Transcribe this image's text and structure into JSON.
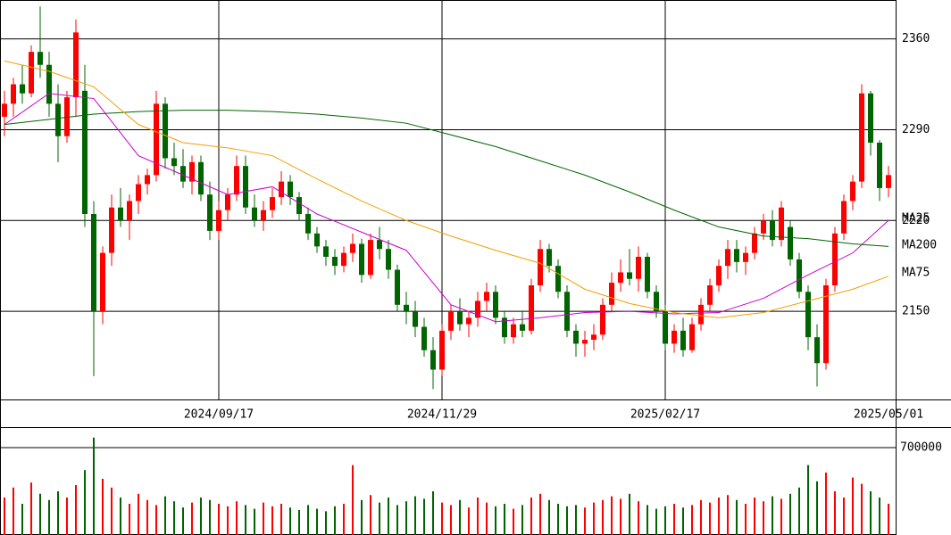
{
  "chart_data": [
    {
      "type": "candlestick",
      "categories": [
        null,
        null,
        null,
        null,
        null,
        null,
        null,
        null,
        null,
        null,
        null,
        null,
        null,
        null,
        null,
        null,
        null,
        null,
        null,
        null,
        null,
        null,
        null,
        null,
        "2024/09/17",
        null,
        null,
        null,
        null,
        null,
        null,
        null,
        null,
        null,
        null,
        null,
        null,
        null,
        null,
        null,
        null,
        null,
        null,
        null,
        null,
        null,
        null,
        null,
        null,
        "2024/11/29",
        null,
        null,
        null,
        null,
        null,
        null,
        null,
        null,
        null,
        null,
        null,
        null,
        null,
        null,
        null,
        null,
        null,
        null,
        null,
        null,
        null,
        null,
        null,
        null,
        "2025/02/17",
        null,
        null,
        null,
        null,
        null,
        null,
        null,
        null,
        null,
        null,
        null,
        null,
        null,
        null,
        null,
        null,
        null,
        null,
        null,
        null,
        null,
        null,
        null,
        null,
        "2025/05/01"
      ],
      "open": [
        2300,
        2310,
        2325,
        2318,
        2350,
        2340,
        2310,
        2285,
        2315,
        2320,
        2225,
        2150,
        2195,
        2230,
        2220,
        2235,
        2248,
        2255,
        2310,
        2268,
        2262,
        2250,
        2265,
        2240,
        2212,
        2228,
        2240,
        2262,
        2230,
        2220,
        2228,
        2238,
        2250,
        2238,
        2225,
        2210,
        2200,
        2192,
        2185,
        2195,
        2202,
        2178,
        2205,
        2198,
        2182,
        2155,
        2150,
        2138,
        2120,
        2105,
        2135,
        2150,
        2140,
        2145,
        2158,
        2165,
        2145,
        2130,
        2140,
        2135,
        2170,
        2198,
        2185,
        2165,
        2135,
        2125,
        2128,
        2132,
        2155,
        2172,
        2180,
        2175,
        2192,
        2165,
        2150,
        2125,
        2135,
        2120,
        2140,
        2155,
        2170,
        2185,
        2198,
        2188,
        2195,
        2210,
        2220,
        2205,
        2215,
        2190,
        2165,
        2130,
        2110,
        2170,
        2210,
        2235,
        2250,
        2318,
        2280,
        2245
      ],
      "high": [
        2320,
        2330,
        2340,
        2355,
        2385,
        2350,
        2325,
        2320,
        2375,
        2340,
        2235,
        2200,
        2240,
        2245,
        2240,
        2255,
        2260,
        2320,
        2315,
        2280,
        2275,
        2270,
        2270,
        2250,
        2235,
        2245,
        2270,
        2270,
        2240,
        2235,
        2245,
        2258,
        2255,
        2242,
        2230,
        2215,
        2205,
        2198,
        2200,
        2210,
        2206,
        2210,
        2215,
        2205,
        2186,
        2165,
        2158,
        2145,
        2130,
        2140,
        2155,
        2160,
        2150,
        2165,
        2172,
        2170,
        2150,
        2145,
        2150,
        2175,
        2205,
        2202,
        2190,
        2170,
        2140,
        2135,
        2140,
        2160,
        2180,
        2190,
        2198,
        2200,
        2195,
        2170,
        2155,
        2140,
        2145,
        2145,
        2160,
        2175,
        2190,
        2205,
        2205,
        2200,
        2215,
        2225,
        2228,
        2235,
        2220,
        2195,
        2170,
        2140,
        2175,
        2215,
        2240,
        2255,
        2325,
        2320,
        2282,
        2262
      ],
      "low": [
        2285,
        2300,
        2310,
        2315,
        2330,
        2300,
        2265,
        2280,
        2300,
        2215,
        2100,
        2140,
        2185,
        2215,
        2205,
        2225,
        2240,
        2250,
        2260,
        2255,
        2245,
        2240,
        2235,
        2205,
        2205,
        2220,
        2235,
        2225,
        2215,
        2212,
        2222,
        2232,
        2232,
        2220,
        2205,
        2195,
        2185,
        2178,
        2180,
        2188,
        2172,
        2175,
        2190,
        2175,
        2150,
        2140,
        2130,
        2115,
        2090,
        2100,
        2128,
        2135,
        2130,
        2138,
        2150,
        2140,
        2125,
        2125,
        2130,
        2132,
        2165,
        2180,
        2160,
        2130,
        2115,
        2115,
        2120,
        2128,
        2150,
        2165,
        2170,
        2165,
        2160,
        2145,
        2120,
        2118,
        2115,
        2118,
        2135,
        2150,
        2165,
        2175,
        2180,
        2178,
        2190,
        2205,
        2200,
        2200,
        2185,
        2160,
        2120,
        2092,
        2105,
        2165,
        2205,
        2228,
        2245,
        2270,
        2235,
        2238
      ],
      "close": [
        2310,
        2325,
        2318,
        2350,
        2340,
        2310,
        2285,
        2315,
        2365,
        2225,
        2150,
        2195,
        2230,
        2220,
        2235,
        2248,
        2255,
        2310,
        2268,
        2262,
        2250,
        2265,
        2240,
        2212,
        2228,
        2240,
        2262,
        2230,
        2220,
        2228,
        2238,
        2250,
        2238,
        2225,
        2210,
        2200,
        2192,
        2185,
        2195,
        2202,
        2178,
        2205,
        2198,
        2182,
        2155,
        2150,
        2138,
        2120,
        2105,
        2135,
        2150,
        2140,
        2145,
        2158,
        2165,
        2145,
        2130,
        2140,
        2135,
        2170,
        2198,
        2185,
        2165,
        2135,
        2125,
        2128,
        2132,
        2155,
        2172,
        2180,
        2175,
        2192,
        2165,
        2150,
        2125,
        2135,
        2120,
        2140,
        2155,
        2170,
        2185,
        2198,
        2188,
        2195,
        2210,
        2220,
        2205,
        2230,
        2190,
        2165,
        2130,
        2110,
        2170,
        2210,
        2235,
        2250,
        2318,
        2280,
        2245,
        2255
      ],
      "up_color": "#ff0000",
      "down_color": "#006400",
      "ylim": [
        2082,
        2390
      ],
      "yticks": [
        2150,
        2220,
        2290,
        2360
      ],
      "grid": true,
      "lines": [
        {
          "name": "MA25",
          "color": "#cc00cc",
          "x": [
            0,
            5,
            10,
            15,
            20,
            25,
            30,
            35,
            40,
            45,
            50,
            55,
            60,
            65,
            70,
            75,
            80,
            85,
            90,
            95,
            99
          ],
          "values": [
            2294,
            2318,
            2314,
            2270,
            2255,
            2240,
            2246,
            2225,
            2211,
            2197,
            2155,
            2142,
            2145,
            2149,
            2150,
            2148,
            2149,
            2160,
            2178,
            2195,
            2220
          ]
        },
        {
          "name": "MA200",
          "color": "#006400",
          "x": [
            0,
            5,
            10,
            15,
            20,
            25,
            30,
            35,
            40,
            45,
            50,
            55,
            60,
            65,
            70,
            75,
            80,
            85,
            90,
            95,
            99
          ],
          "values": [
            2294,
            2298,
            2302,
            2304,
            2305,
            2305,
            2304,
            2302,
            2299,
            2295,
            2286,
            2277,
            2266,
            2255,
            2242,
            2228,
            2215,
            2208,
            2206,
            2202,
            2200
          ]
        },
        {
          "name": "MA75",
          "color": "#f0a000",
          "x": [
            0,
            5,
            10,
            15,
            20,
            25,
            30,
            35,
            40,
            45,
            50,
            55,
            60,
            65,
            70,
            75,
            80,
            85,
            90,
            95,
            99
          ],
          "values": [
            2343,
            2335,
            2323,
            2294,
            2280,
            2276,
            2270,
            2252,
            2235,
            2220,
            2208,
            2197,
            2187,
            2167,
            2156,
            2149,
            2145,
            2149,
            2158,
            2167,
            2177
          ]
        }
      ]
    },
    {
      "type": "volume",
      "values": [
        300000,
        380000,
        250000,
        420000,
        330000,
        280000,
        350000,
        300000,
        400000,
        520000,
        780000,
        450000,
        380000,
        300000,
        250000,
        330000,
        280000,
        240000,
        310000,
        270000,
        220000,
        260000,
        300000,
        280000,
        250000,
        230000,
        270000,
        240000,
        210000,
        260000,
        230000,
        250000,
        220000,
        200000,
        240000,
        210000,
        190000,
        230000,
        250000,
        560000,
        280000,
        320000,
        260000,
        300000,
        240000,
        270000,
        310000,
        290000,
        350000,
        260000,
        240000,
        280000,
        220000,
        300000,
        260000,
        230000,
        250000,
        210000,
        240000,
        300000,
        330000,
        280000,
        250000,
        230000,
        240000,
        220000,
        260000,
        280000,
        310000,
        290000,
        330000,
        270000,
        240000,
        210000,
        230000,
        250000,
        220000,
        240000,
        280000,
        260000,
        300000,
        320000,
        280000,
        250000,
        300000,
        270000,
        310000,
        290000,
        330000,
        380000,
        560000,
        430000,
        500000,
        350000,
        300000,
        460000,
        410000,
        350000,
        300000,
        250000
      ],
      "ylim": [
        0,
        857000
      ],
      "yticks": [
        700000
      ],
      "grid": true
    }
  ]
}
